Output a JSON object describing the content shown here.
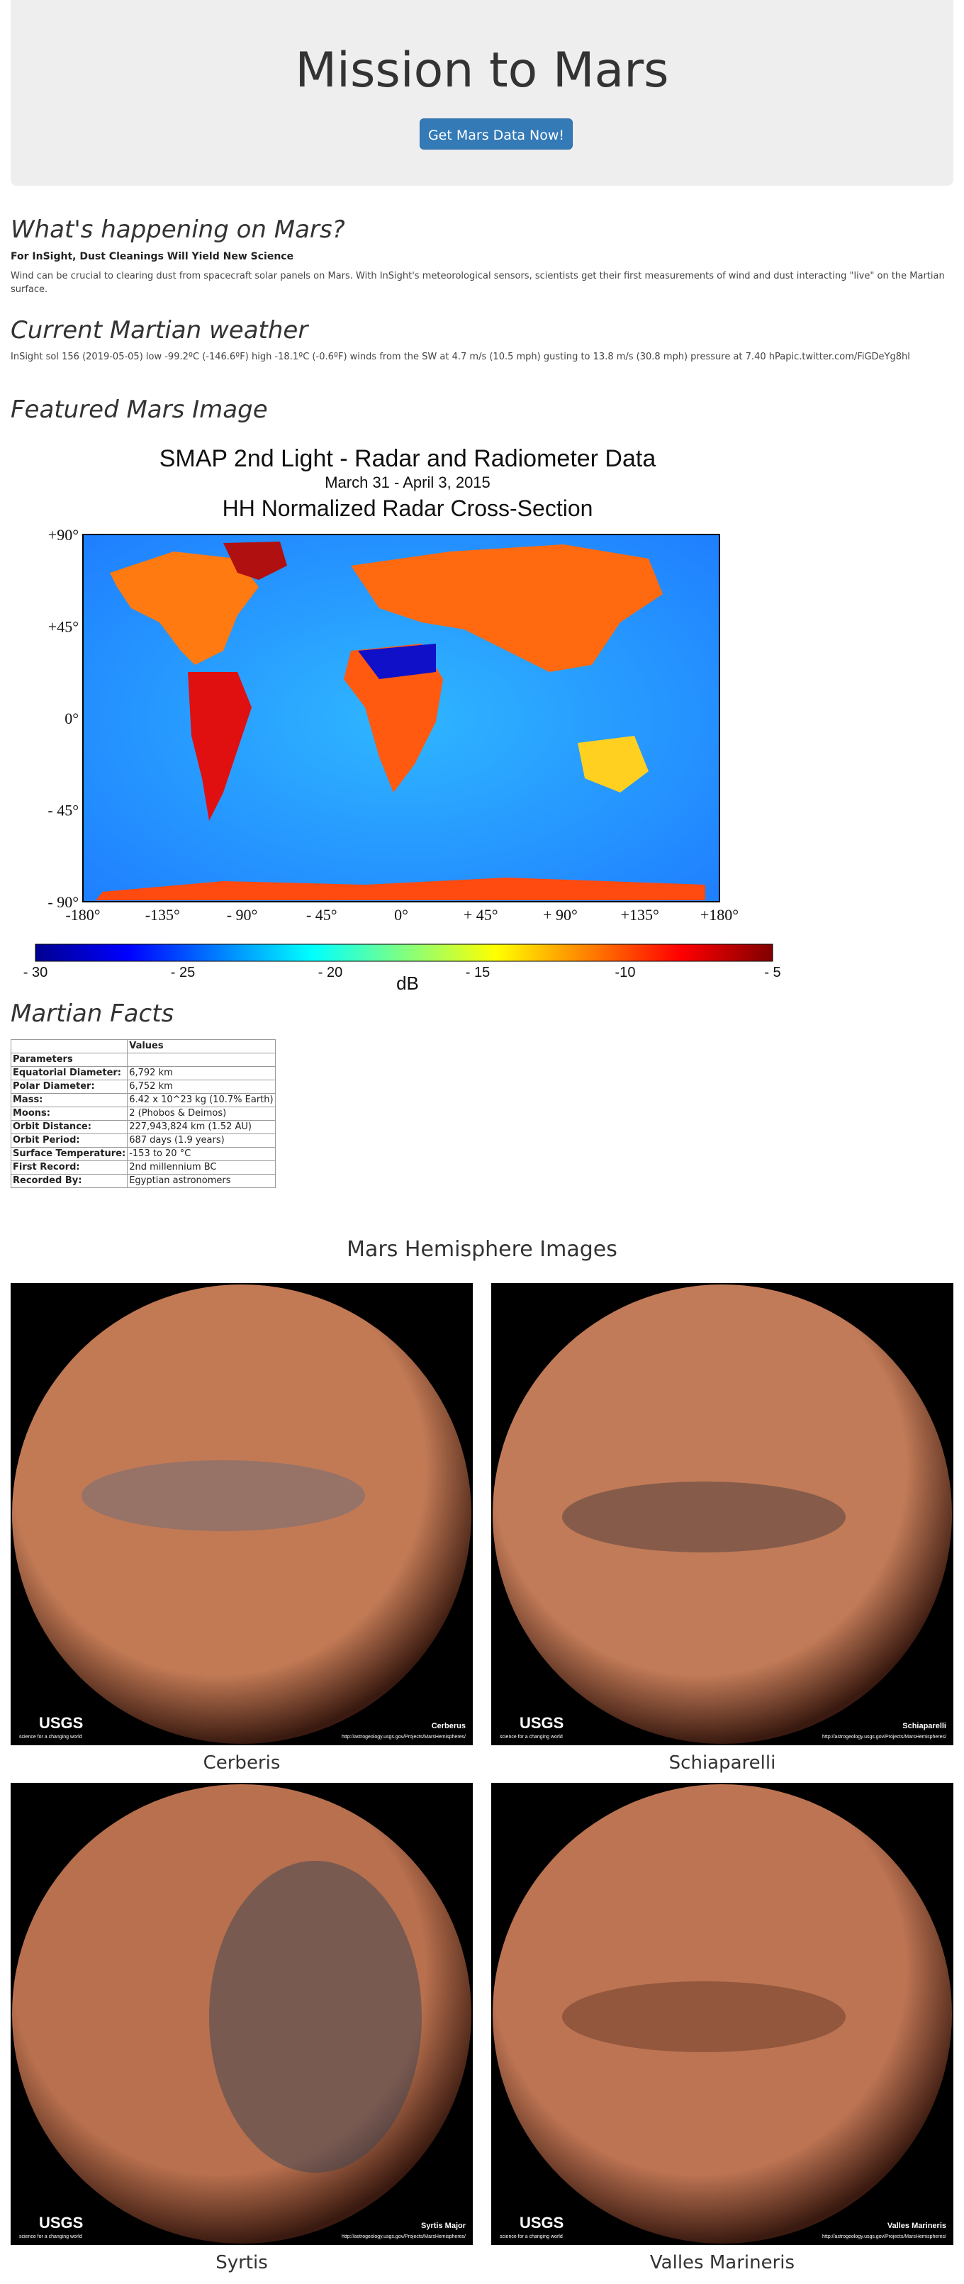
{
  "jumbotron": {
    "title": "Mission to Mars",
    "button_label": "Get Mars Data Now!"
  },
  "news": {
    "heading": "What's happening on Mars?",
    "title": "For InSight, Dust Cleanings Will Yield New Science",
    "paragraph": "Wind can be crucial to clearing dust from spacecraft solar panels on Mars. With InSight's meteorological sensors, scientists get their first measurements of wind and dust interacting \"live\" on the Martian surface."
  },
  "weather": {
    "heading": "Current Martian weather",
    "text": "InSight sol 156 (2019-05-05) low -99.2ºC (-146.6ºF) high -18.1ºC (-0.6ºF) winds from the SW at 4.7 m/s (10.5 mph) gusting to 13.8 m/s (30.8 mph) pressure at 7.40 hPapic.twitter.com/FiGDeYg8hl"
  },
  "featured": {
    "heading": "Featured Mars Image",
    "image": {
      "title": "SMAP 2nd Light - Radar and Radiometer Data",
      "subtitle": "March 31 - April 3, 2015",
      "map_title": "HH Normalized Radar Cross-Section",
      "lat_ticks": [
        "+90°",
        "+45°",
        "0°",
        "- 45°",
        "- 90°"
      ],
      "lon_ticks": [
        "-180°",
        "-135°",
        "- 90°",
        "- 45°",
        "0°",
        "+ 45°",
        "+ 90°",
        "+135°",
        "+180°"
      ],
      "colorbar_ticks": [
        "- 30",
        "- 25",
        "- 20",
        "- 15",
        "-10",
        "- 5"
      ],
      "colorbar_unit": "dB",
      "colorbar_colors": [
        "#00008f",
        "#0000ff",
        "#0080ff",
        "#00ffff",
        "#80ff80",
        "#ffff00",
        "#ff8000",
        "#ff0000",
        "#800000"
      ]
    }
  },
  "facts": {
    "heading": "Martian Facts",
    "column_header": "Values",
    "index_header": "Parameters",
    "rows": [
      {
        "label": "Equatorial Diameter:",
        "value": "6,792 km"
      },
      {
        "label": "Polar Diameter:",
        "value": "6,752 km"
      },
      {
        "label": "Mass:",
        "value": "6.42 x 10^23 kg (10.7% Earth)"
      },
      {
        "label": "Moons:",
        "value": "2 (Phobos & Deimos)"
      },
      {
        "label": "Orbit Distance:",
        "value": "227,943,824 km (1.52 AU)"
      },
      {
        "label": "Orbit Period:",
        "value": "687 days (1.9 years)"
      },
      {
        "label": "Surface Temperature:",
        "value": "-153 to 20 °C"
      },
      {
        "label": "First Record:",
        "value": "2nd millennium BC"
      },
      {
        "label": "Recorded By:",
        "value": "Egyptian astronomers"
      }
    ]
  },
  "hemispheres": {
    "heading": "Mars Hemisphere Images",
    "items": [
      {
        "caption": "Cerberis",
        "image_label": "Cerberus",
        "tone": "#c27a55",
        "dark": "#6a6a7a"
      },
      {
        "caption": "Schiaparelli",
        "image_label": "Schiaparelli",
        "tone": "#c27b58",
        "dark": "#4a3c3c"
      },
      {
        "caption": "Syrtis",
        "image_label": "Syrtis Major",
        "tone": "#b8704e",
        "dark": "#3a4454"
      },
      {
        "caption": "Valles Marineris",
        "image_label": "Valles Marineris",
        "tone": "#bd7453",
        "dark": "#6a3a2a"
      }
    ],
    "logo_text": "USGS",
    "logo_tagline": "science for a changing world",
    "credit_url": "http://astrogeology.usgs.gov/Projects/MarsHemispheres/"
  }
}
